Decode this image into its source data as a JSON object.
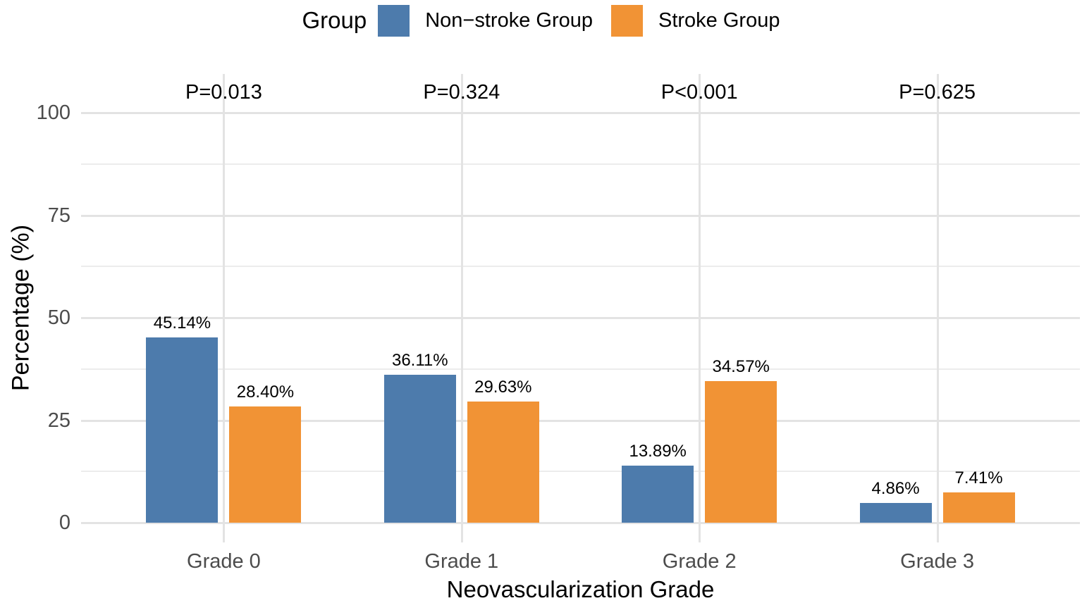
{
  "chart_data": {
    "type": "bar",
    "legend_title": "Group",
    "legend_position": "top",
    "categories": [
      "Grade 0",
      "Grade 1",
      "Grade 2",
      "Grade 3"
    ],
    "series": [
      {
        "name": "Non−stroke Group",
        "color": "#4d7bac",
        "values": [
          45.14,
          36.11,
          13.89,
          4.86
        ],
        "value_labels": [
          "45.14%",
          "36.11%",
          "13.89%",
          "4.86%"
        ]
      },
      {
        "name": "Stroke Group",
        "color": "#f19335",
        "values": [
          28.4,
          29.63,
          34.57,
          7.41
        ],
        "value_labels": [
          "28.40%",
          "29.63%",
          "34.57%",
          "7.41%"
        ]
      }
    ],
    "p_values": [
      "P=0.013",
      "P=0.324",
      "P<0.001",
      "P=0.625"
    ],
    "xlabel": "Neovascularization Grade",
    "ylabel": "Percentage (%)",
    "ylim": [
      0,
      100
    ],
    "yticks": [
      0,
      25,
      50,
      75,
      100
    ],
    "yticks_minor": [
      12.5,
      37.5,
      62.5,
      87.5
    ],
    "grid": true,
    "colors": {
      "grid_major": "#e3e3e3",
      "grid_minor": "#ececec",
      "tick_label": "#4c4c4c",
      "background": "#ffffff"
    }
  }
}
